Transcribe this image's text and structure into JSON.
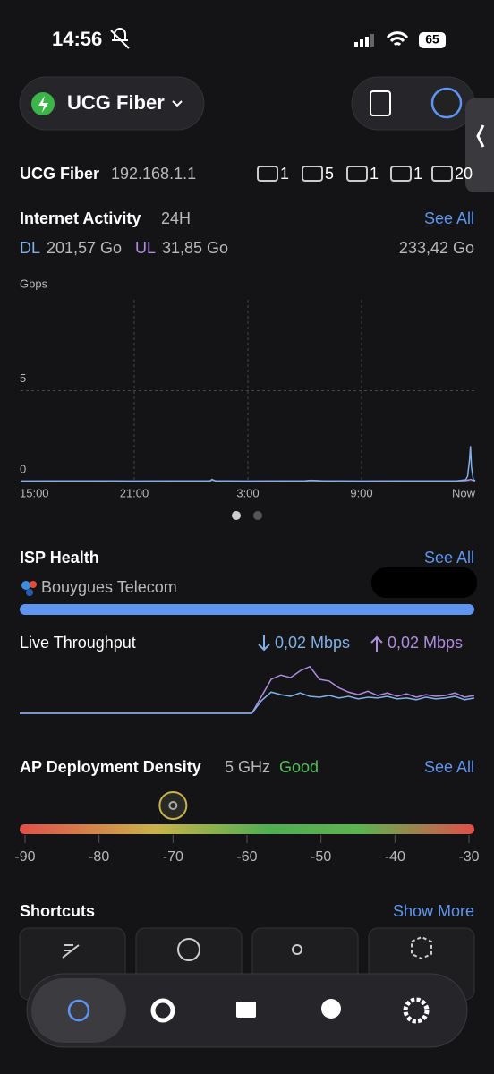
{
  "status_bar": {
    "time": "14:56",
    "battery": "65"
  },
  "header": {
    "device": "UCG Fiber"
  },
  "summary": {
    "name": "UCG Fiber",
    "ip": "192.168.1.1",
    "counts": [
      "1",
      "5",
      "1",
      "1",
      "20"
    ]
  },
  "internet_activity": {
    "title": "Internet Activity",
    "period": "24H",
    "see_all": "See All",
    "dl_value": "201,57 Go",
    "ul_value": "31,85 Go",
    "total": "233,42 Go",
    "chart": {
      "type": "line",
      "y_unit": "Gbps",
      "xlim": [
        0,
        24
      ],
      "ylim": [
        0,
        10
      ],
      "yticks": [
        0,
        5
      ],
      "xticks": [
        {
          "value": 0,
          "label": "15:00"
        },
        {
          "value": 6,
          "label": "21:00"
        },
        {
          "value": 12,
          "label": "3:00"
        },
        {
          "value": 18,
          "label": "9:00"
        },
        {
          "value": 24,
          "label": "Now"
        }
      ],
      "x": [
        0,
        2,
        4,
        6,
        8,
        10,
        10.1,
        10.3,
        12,
        14,
        15,
        15.3,
        16,
        18,
        20,
        22,
        23,
        23.5,
        23.6,
        23.7,
        23.75,
        23.8,
        23.9,
        24
      ],
      "series": [
        {
          "name": "DL",
          "color": "#7fb0e8",
          "values": [
            0.02,
            0.03,
            0.03,
            0.02,
            0.03,
            0.03,
            0.12,
            0.03,
            0.02,
            0.03,
            0.03,
            0.06,
            0.03,
            0.02,
            0.03,
            0.03,
            0.03,
            0.1,
            0.3,
            1.2,
            1.95,
            0.8,
            0.1,
            0.05
          ]
        },
        {
          "name": "UL",
          "color": "#b08ce0",
          "values": [
            0.03,
            0.04,
            0.04,
            0.03,
            0.04,
            0.04,
            0.1,
            0.04,
            0.03,
            0.04,
            0.04,
            0.07,
            0.04,
            0.03,
            0.04,
            0.04,
            0.04,
            0.06,
            0.08,
            0.1,
            0.12,
            0.1,
            0.06,
            0.04
          ]
        }
      ]
    }
  },
  "isp_health": {
    "title": "ISP Health",
    "see_all": "See All",
    "provider": "Bouygues Telecom"
  },
  "live_throughput": {
    "title": "Live Throughput",
    "down": "0,02 Mbps",
    "up": "0,02 Mbps",
    "ylim": [
      0,
      0.06
    ],
    "series": [
      {
        "color": "#7fb0e8",
        "values": [
          0,
          0,
          0,
          0,
          0,
          0,
          0,
          0,
          0,
          0,
          0,
          0,
          0,
          0,
          0,
          0,
          0,
          0,
          0,
          0,
          0,
          0,
          0,
          0,
          0,
          0.015,
          0.025,
          0.022,
          0.02,
          0.024,
          0.02,
          0.019,
          0.021,
          0.018,
          0.02,
          0.017,
          0.019,
          0.018,
          0.02,
          0.017,
          0.018,
          0.016,
          0.019,
          0.017,
          0.018,
          0.02,
          0.016,
          0.018
        ]
      },
      {
        "color": "#b08ce0",
        "values": [
          0,
          0,
          0,
          0,
          0,
          0,
          0,
          0,
          0,
          0,
          0,
          0,
          0,
          0,
          0,
          0,
          0,
          0,
          0,
          0,
          0,
          0,
          0,
          0,
          0,
          0.02,
          0.04,
          0.045,
          0.042,
          0.05,
          0.055,
          0.04,
          0.038,
          0.03,
          0.025,
          0.022,
          0.026,
          0.021,
          0.024,
          0.02,
          0.023,
          0.019,
          0.022,
          0.02,
          0.021,
          0.024,
          0.019,
          0.021
        ]
      }
    ]
  },
  "ap_density": {
    "title": "AP Deployment Density",
    "band": "5 GHz",
    "rating": "Good",
    "see_all": "See All",
    "value": -70,
    "xlim": [
      -90,
      -30
    ],
    "xticks": [
      -90,
      -80,
      -70,
      -60,
      -50,
      -40,
      -30
    ]
  },
  "shortcuts": {
    "title": "Shortcuts",
    "show_more": "Show More"
  }
}
